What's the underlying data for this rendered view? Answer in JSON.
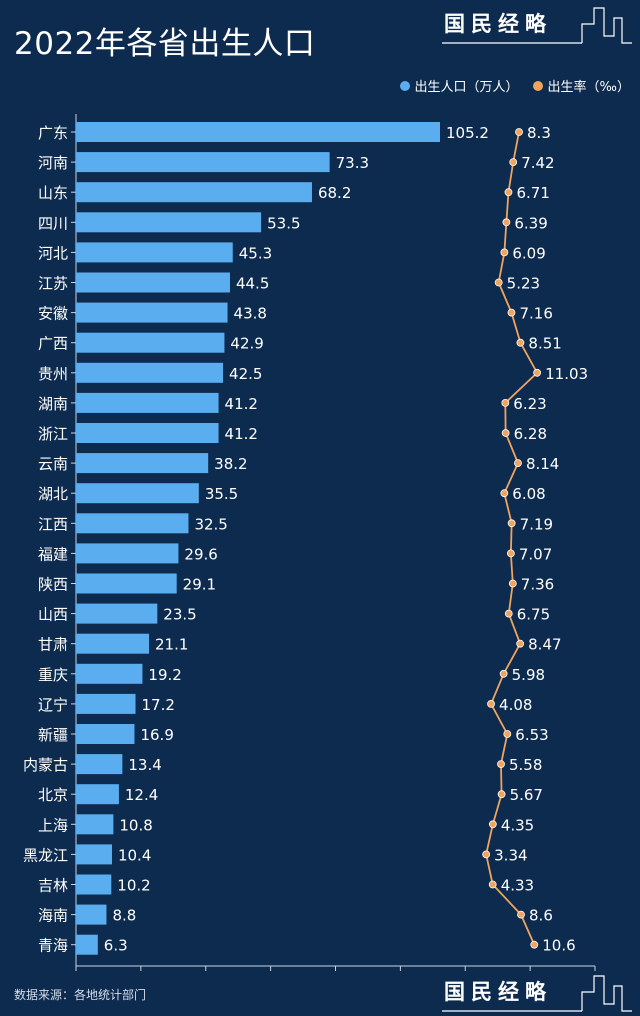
{
  "title": "2022年各省出生人口",
  "brand": "国民经略",
  "source": "数据来源：各地统计部门",
  "colors": {
    "background": "#0d2b4f",
    "bar": "#5aaef0",
    "line": "#f0a45e"
  },
  "chart_data": {
    "type": "bar+line",
    "title": "2022年各省出生人口",
    "legend_position": "top-right",
    "categories": [
      "广东",
      "河南",
      "山东",
      "四川",
      "河北",
      "江苏",
      "安徽",
      "广西",
      "贵州",
      "湖南",
      "浙江",
      "云南",
      "湖北",
      "江西",
      "福建",
      "陕西",
      "山西",
      "甘肃",
      "重庆",
      "辽宁",
      "新疆",
      "内蒙古",
      "北京",
      "上海",
      "黑龙江",
      "吉林",
      "海南",
      "青海"
    ],
    "series": [
      {
        "name": "出生人口（万人）",
        "type": "bar",
        "values": [
          105.2,
          73.3,
          68.2,
          53.5,
          45.3,
          44.5,
          43.8,
          42.9,
          42.5,
          41.2,
          41.2,
          38.2,
          35.5,
          32.5,
          29.6,
          29.1,
          23.5,
          21.1,
          19.2,
          17.2,
          16.9,
          13.4,
          12.4,
          10.8,
          10.4,
          10.2,
          8.8,
          6.3
        ]
      },
      {
        "name": "出生率（‰）",
        "type": "line",
        "values": [
          8.3,
          7.42,
          6.71,
          6.39,
          6.09,
          5.23,
          7.16,
          8.51,
          11.03,
          6.23,
          6.28,
          8.14,
          6.08,
          7.19,
          7.07,
          7.36,
          6.75,
          8.47,
          5.98,
          4.08,
          6.53,
          5.58,
          5.67,
          4.35,
          3.34,
          4.33,
          8.6,
          10.6
        ]
      }
    ],
    "xlim": [
      0,
      150
    ],
    "grid": false
  }
}
